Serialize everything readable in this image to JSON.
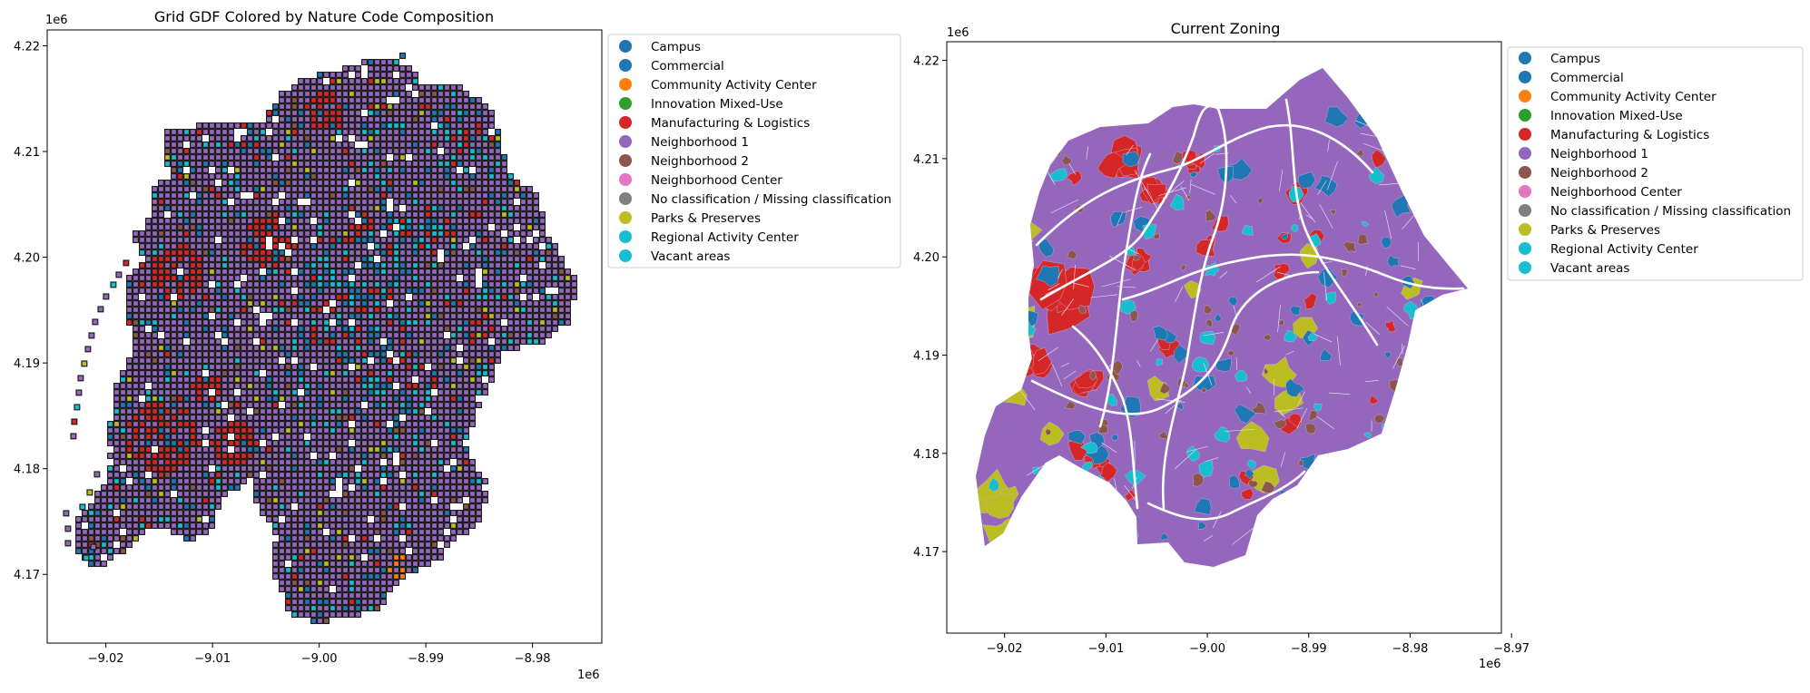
{
  "legend_categories": [
    {
      "label": "Campus",
      "color": "#1f77b4"
    },
    {
      "label": "Commercial",
      "color": "#1f77b4"
    },
    {
      "label": "Community Activity Center",
      "color": "#ff7f0e"
    },
    {
      "label": "Innovation Mixed-Use",
      "color": "#2ca02c"
    },
    {
      "label": "Manufacturing & Logistics",
      "color": "#d62728"
    },
    {
      "label": "Neighborhood 1",
      "color": "#9467bd"
    },
    {
      "label": "Neighborhood 2",
      "color": "#8c564b"
    },
    {
      "label": "Neighborhood Center",
      "color": "#e377c2"
    },
    {
      "label": "No classification / Missing classification",
      "color": "#7f7f7f"
    },
    {
      "label": "Parks & Preserves",
      "color": "#bcbd22"
    },
    {
      "label": "Regional Activity Center",
      "color": "#17becf"
    },
    {
      "label": "Vacant areas",
      "color": "#17becf"
    }
  ],
  "maps": [
    {
      "title": "Grid GDF Colored by Nature Code Composition",
      "x_offset": "1e6",
      "y_offset": "1e6",
      "x_ticks": [
        {
          "value": -9.02,
          "label": "−9.02"
        },
        {
          "value": -9.01,
          "label": "−9.01"
        },
        {
          "value": -9.0,
          "label": "−9.00"
        },
        {
          "value": -8.99,
          "label": "−8.99"
        },
        {
          "value": -8.98,
          "label": "−8.98"
        }
      ],
      "y_ticks": [
        {
          "value": 4.17,
          "label": "4.17"
        },
        {
          "value": 4.18,
          "label": "4.18"
        },
        {
          "value": 4.19,
          "label": "4.19"
        },
        {
          "value": 4.2,
          "label": "4.20"
        },
        {
          "value": 4.21,
          "label": "4.21"
        },
        {
          "value": 4.22,
          "label": "4.22"
        }
      ],
      "x_range": [
        -9.0255,
        -8.9735
      ],
      "y_range": [
        4.1635,
        4.2215
      ],
      "style": "grid cells with dark outlines"
    },
    {
      "title": "Current Zoning",
      "x_offset": "1e6",
      "y_offset": "1e6",
      "x_ticks": [
        {
          "value": -9.02,
          "label": "−9.02"
        },
        {
          "value": -9.01,
          "label": "−9.01"
        },
        {
          "value": -9.0,
          "label": "−9.00"
        },
        {
          "value": -8.99,
          "label": "−8.99"
        },
        {
          "value": -8.98,
          "label": "−8.98"
        },
        {
          "value": -8.97,
          "label": "−8.97"
        }
      ],
      "y_ticks": [
        {
          "value": 4.17,
          "label": "4.17"
        },
        {
          "value": 4.18,
          "label": "4.18"
        },
        {
          "value": 4.19,
          "label": "4.19"
        },
        {
          "value": 4.2,
          "label": "4.20"
        },
        {
          "value": 4.21,
          "label": "4.21"
        },
        {
          "value": 4.22,
          "label": "4.22"
        }
      ],
      "x_range": [
        -9.0257,
        -8.971
      ],
      "y_range": [
        4.1617,
        4.2219
      ],
      "style": "zoning polygons"
    }
  ]
}
